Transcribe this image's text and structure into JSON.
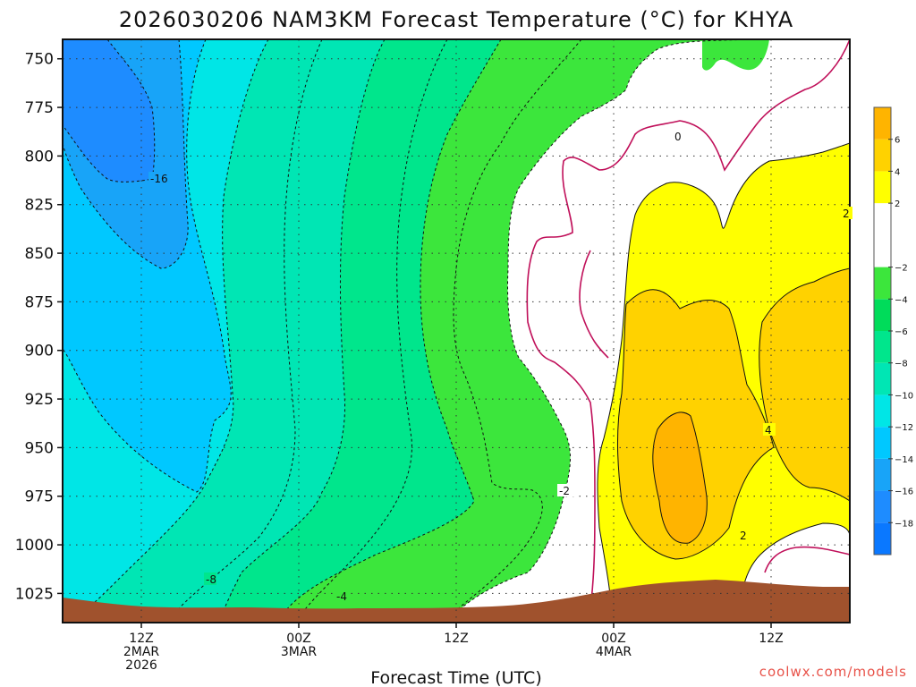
{
  "chart_data": {
    "type": "heatmap",
    "title": "2026030206 NAM3KM Forecast Temperature (°C) for KHYA",
    "xlabel": "Forecast Time (UTC)",
    "ylabel": "",
    "y_scale": "pressure (hPa), increasing downward",
    "ylim": [
      740,
      1040
    ],
    "y_ticks": [
      "750",
      "775",
      "800",
      "825",
      "850",
      "875",
      "900",
      "925",
      "950",
      "975",
      "1000",
      "1025"
    ],
    "x_ticks": [
      {
        "time": "2026-03-02T12Z",
        "lines": [
          "12Z",
          "2MAR",
          "2026"
        ]
      },
      {
        "time": "2026-03-03T00Z",
        "lines": [
          "00Z",
          "3MAR"
        ]
      },
      {
        "time": "2026-03-03T12Z",
        "lines": [
          "12Z"
        ]
      },
      {
        "time": "2026-03-04T00Z",
        "lines": [
          "00Z",
          "4MAR"
        ]
      },
      {
        "time": "2026-03-04T12Z",
        "lines": [
          "12Z"
        ]
      }
    ],
    "grid": true,
    "colorbar": {
      "position": "right",
      "bins": [
        {
          "range": [
            -20,
            -18
          ],
          "color": "#0a78ff"
        },
        {
          "range": [
            -18,
            -16
          ],
          "color": "#1e8cff"
        },
        {
          "range": [
            -16,
            -14
          ],
          "color": "#18a4f8"
        },
        {
          "range": [
            -14,
            -12
          ],
          "color": "#00c8ff"
        },
        {
          "range": [
            -12,
            -10
          ],
          "color": "#00e6e6"
        },
        {
          "range": [
            -10,
            -8
          ],
          "color": "#00e6b4"
        },
        {
          "range": [
            -8,
            -6
          ],
          "color": "#00e68c"
        },
        {
          "range": [
            -6,
            -4
          ],
          "color": "#00dc5a"
        },
        {
          "range": [
            -4,
            -2
          ],
          "color": "#3ce63c"
        },
        {
          "range": [
            -2,
            2
          ],
          "color": "#ffffff"
        },
        {
          "range": [
            2,
            4
          ],
          "color": "#ffff00"
        },
        {
          "range": [
            4,
            6
          ],
          "color": "#ffd200"
        },
        {
          "range": [
            6,
            8
          ],
          "color": "#ffb400"
        }
      ],
      "tick_labels": [
        "6",
        "4",
        "2",
        "−2",
        "−4",
        "−6",
        "−8",
        "−10",
        "−12",
        "−14",
        "−16",
        "−18"
      ]
    },
    "contour_labels": [
      "-16",
      "-8",
      "-4",
      "-2",
      "0",
      "2",
      "2",
      "4"
    ],
    "terrain_color": "#a0522d",
    "freezing_line_color": "#c0105a"
  },
  "credit": "coolwx.com/models"
}
